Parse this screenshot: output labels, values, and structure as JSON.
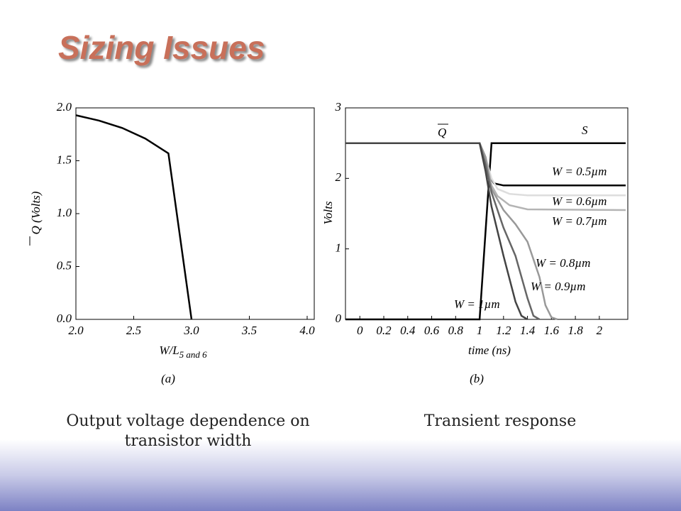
{
  "title": "Sizing Issues",
  "captions": [
    "Output voltage dependence on transistor width",
    "Transient response"
  ],
  "chart_data": [
    {
      "type": "line",
      "sublabel": "(a)",
      "xlabel": "W/L",
      "xlabel_subscript": "5 and 6",
      "ylabel": "Q (Volts)",
      "xlim": [
        2.0,
        4.0
      ],
      "ylim": [
        0.0,
        2.0
      ],
      "xticks": [
        {
          "value": 2.0,
          "label": "2.0"
        },
        2.5,
        {
          "value": 3.0,
          "label": "3.0"
        },
        3.5,
        {
          "value": 4.0,
          "label": "4.0"
        }
      ],
      "yticks": [
        {
          "value": 0.0,
          "label": "0.0"
        },
        0.5,
        {
          "value": 1.0,
          "label": "1.0"
        },
        1.5,
        {
          "value": 2.0,
          "label": "2.0"
        }
      ],
      "series": [
        {
          "color": "#000000",
          "x": [
            2.0,
            2.2,
            2.4,
            2.6,
            2.8,
            3.0
          ],
          "values": [
            1.93,
            1.88,
            1.81,
            1.71,
            1.57,
            0.0
          ]
        }
      ]
    },
    {
      "type": "line",
      "sublabel": "(b)",
      "xlabel": "time (ns)",
      "ylabel": "Volts",
      "annotations": [
        "Q"
      ],
      "xlim": [
        -0.12,
        2.22
      ],
      "ylim": [
        0,
        3
      ],
      "xticks": [
        0,
        0.2,
        0.4,
        0.6,
        0.8,
        1,
        1.2,
        1.4,
        1.6,
        1.8,
        2
      ],
      "yticks": [
        0,
        1,
        2,
        3
      ],
      "series": [
        {
          "name": "S",
          "color": "#000000",
          "x": [
            -0.12,
            1.0,
            1.1,
            2.22
          ],
          "values": [
            0,
            0,
            2.5,
            2.5
          ]
        },
        {
          "name": "W = 0.5µm",
          "color": "#000000",
          "x": [
            -0.12,
            1.0,
            1.05,
            1.08,
            1.12,
            1.2,
            2.22
          ],
          "values": [
            2.5,
            2.5,
            2.3,
            2.05,
            1.93,
            1.9,
            1.9
          ]
        },
        {
          "name": "W = 0.6µm",
          "color": "#dddddd",
          "x": [
            -0.12,
            1.0,
            1.05,
            1.1,
            1.15,
            1.25,
            1.4,
            2.22
          ],
          "values": [
            2.5,
            2.5,
            2.3,
            2.0,
            1.85,
            1.78,
            1.76,
            1.76
          ]
        },
        {
          "name": "W = 0.7µm",
          "color": "#b4b4b4",
          "x": [
            -0.12,
            1.0,
            1.05,
            1.1,
            1.15,
            1.25,
            1.4,
            2.22
          ],
          "values": [
            2.5,
            2.5,
            2.3,
            1.9,
            1.75,
            1.62,
            1.56,
            1.55
          ]
        },
        {
          "name": "W = 0.8µm",
          "color": "#999999",
          "x": [
            -0.12,
            1.0,
            1.05,
            1.1,
            1.2,
            1.3,
            1.4,
            1.5,
            1.55,
            1.6,
            1.65
          ],
          "values": [
            2.5,
            2.5,
            2.3,
            1.85,
            1.55,
            1.35,
            1.1,
            0.6,
            0.2,
            0.03,
            0
          ]
        },
        {
          "name": "W = 0.9µm",
          "color": "#666666",
          "x": [
            -0.12,
            1.0,
            1.05,
            1.1,
            1.2,
            1.3,
            1.4,
            1.45,
            1.5
          ],
          "values": [
            2.5,
            2.5,
            2.2,
            1.8,
            1.3,
            0.9,
            0.3,
            0.05,
            0
          ]
        },
        {
          "name": "W = 1µm",
          "color": "#444444",
          "x": [
            -0.12,
            1.0,
            1.05,
            1.1,
            1.2,
            1.3,
            1.35,
            1.4
          ],
          "values": [
            2.5,
            2.5,
            2.1,
            1.6,
            0.9,
            0.25,
            0.05,
            0
          ]
        }
      ]
    }
  ]
}
